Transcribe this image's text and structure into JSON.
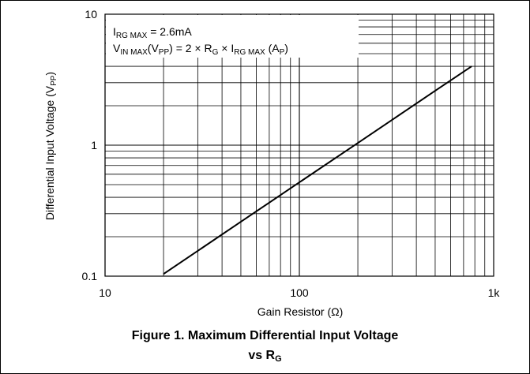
{
  "chart_data": {
    "type": "line",
    "x_scale": "log",
    "y_scale": "log",
    "xlim": [
      10,
      1000
    ],
    "ylim": [
      0.1,
      10
    ],
    "grid": true,
    "xlabel": "Gain Resistor (Ω)",
    "ylabel": {
      "base": "Differential Input Voltage (V",
      "sub": "PP",
      "tail": ")"
    },
    "x_ticks": [
      {
        "value": 10,
        "label": "10"
      },
      {
        "value": 100,
        "label": "100"
      },
      {
        "value": 1000,
        "label": "1k"
      }
    ],
    "y_ticks": [
      {
        "value": 0.1,
        "label": "0.1"
      },
      {
        "value": 1,
        "label": "1"
      },
      {
        "value": 10,
        "label": "10"
      }
    ],
    "series": [
      {
        "x": [
          20,
          50,
          100,
          200,
          300,
          500,
          770
        ],
        "y": [
          0.104,
          0.26,
          0.52,
          1.04,
          1.56,
          2.6,
          4.0
        ]
      }
    ],
    "annotation": {
      "line1": {
        "a": "I",
        "sub": "RG MAX",
        "b": " = 2.6mA"
      },
      "line2": {
        "a": "V",
        "sub1": "IN MAX",
        "b": "(V",
        "sub2": "PP",
        "c": ") = 2 × R",
        "sub3": "G",
        "d": " × I",
        "sub4": "RG MAX",
        "e": " (A",
        "sub5": "P",
        "f": ")"
      }
    }
  },
  "caption": {
    "line1": "Figure 1. Maximum Differential Input Voltage",
    "line2_prefix": "vs R",
    "line2_sub": "G"
  }
}
